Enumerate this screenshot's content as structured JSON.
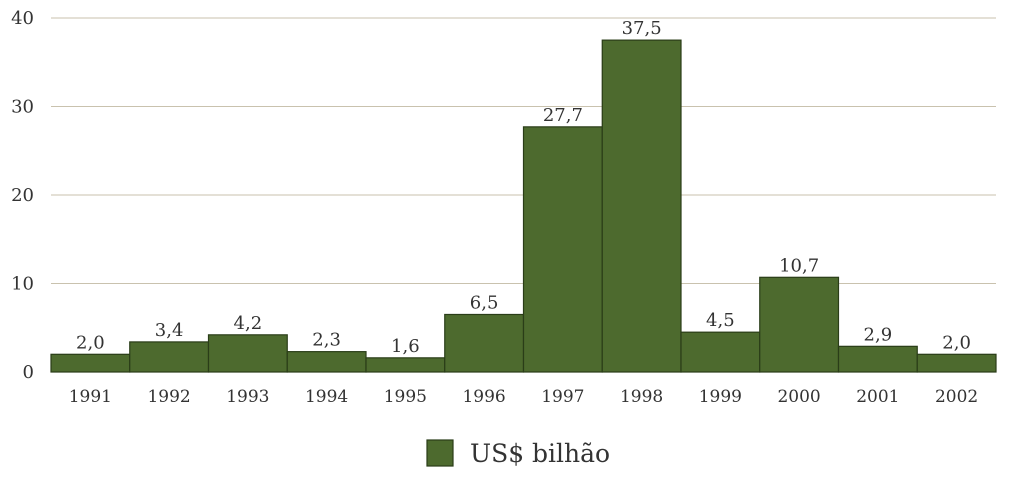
{
  "chart_data": {
    "type": "bar",
    "categories": [
      "1991",
      "1992",
      "1993",
      "1994",
      "1995",
      "1996",
      "1997",
      "1998",
      "1999",
      "2000",
      "2001",
      "2002"
    ],
    "series": [
      {
        "name": "US$ bilhão",
        "values": [
          2.0,
          3.4,
          4.2,
          2.3,
          1.6,
          6.5,
          27.7,
          37.5,
          4.5,
          10.7,
          2.9,
          2.0
        ]
      }
    ],
    "data_labels": [
      "2,0",
      "3,4",
      "4,2",
      "2,3",
      "1,6",
      "6,5",
      "27,7",
      "37,5",
      "4,5",
      "10,7",
      "2,9",
      "2,0"
    ],
    "yticks": [
      0,
      10,
      20,
      30,
      40
    ],
    "ylim": [
      0,
      40
    ],
    "grid": true,
    "legend_position": "bottom-center",
    "colors": {
      "bar": "#4d6a2e",
      "bar_edge": "#2a3d18",
      "grid": "#c9c2ae"
    },
    "title": "",
    "xlabel": "",
    "ylabel": ""
  }
}
